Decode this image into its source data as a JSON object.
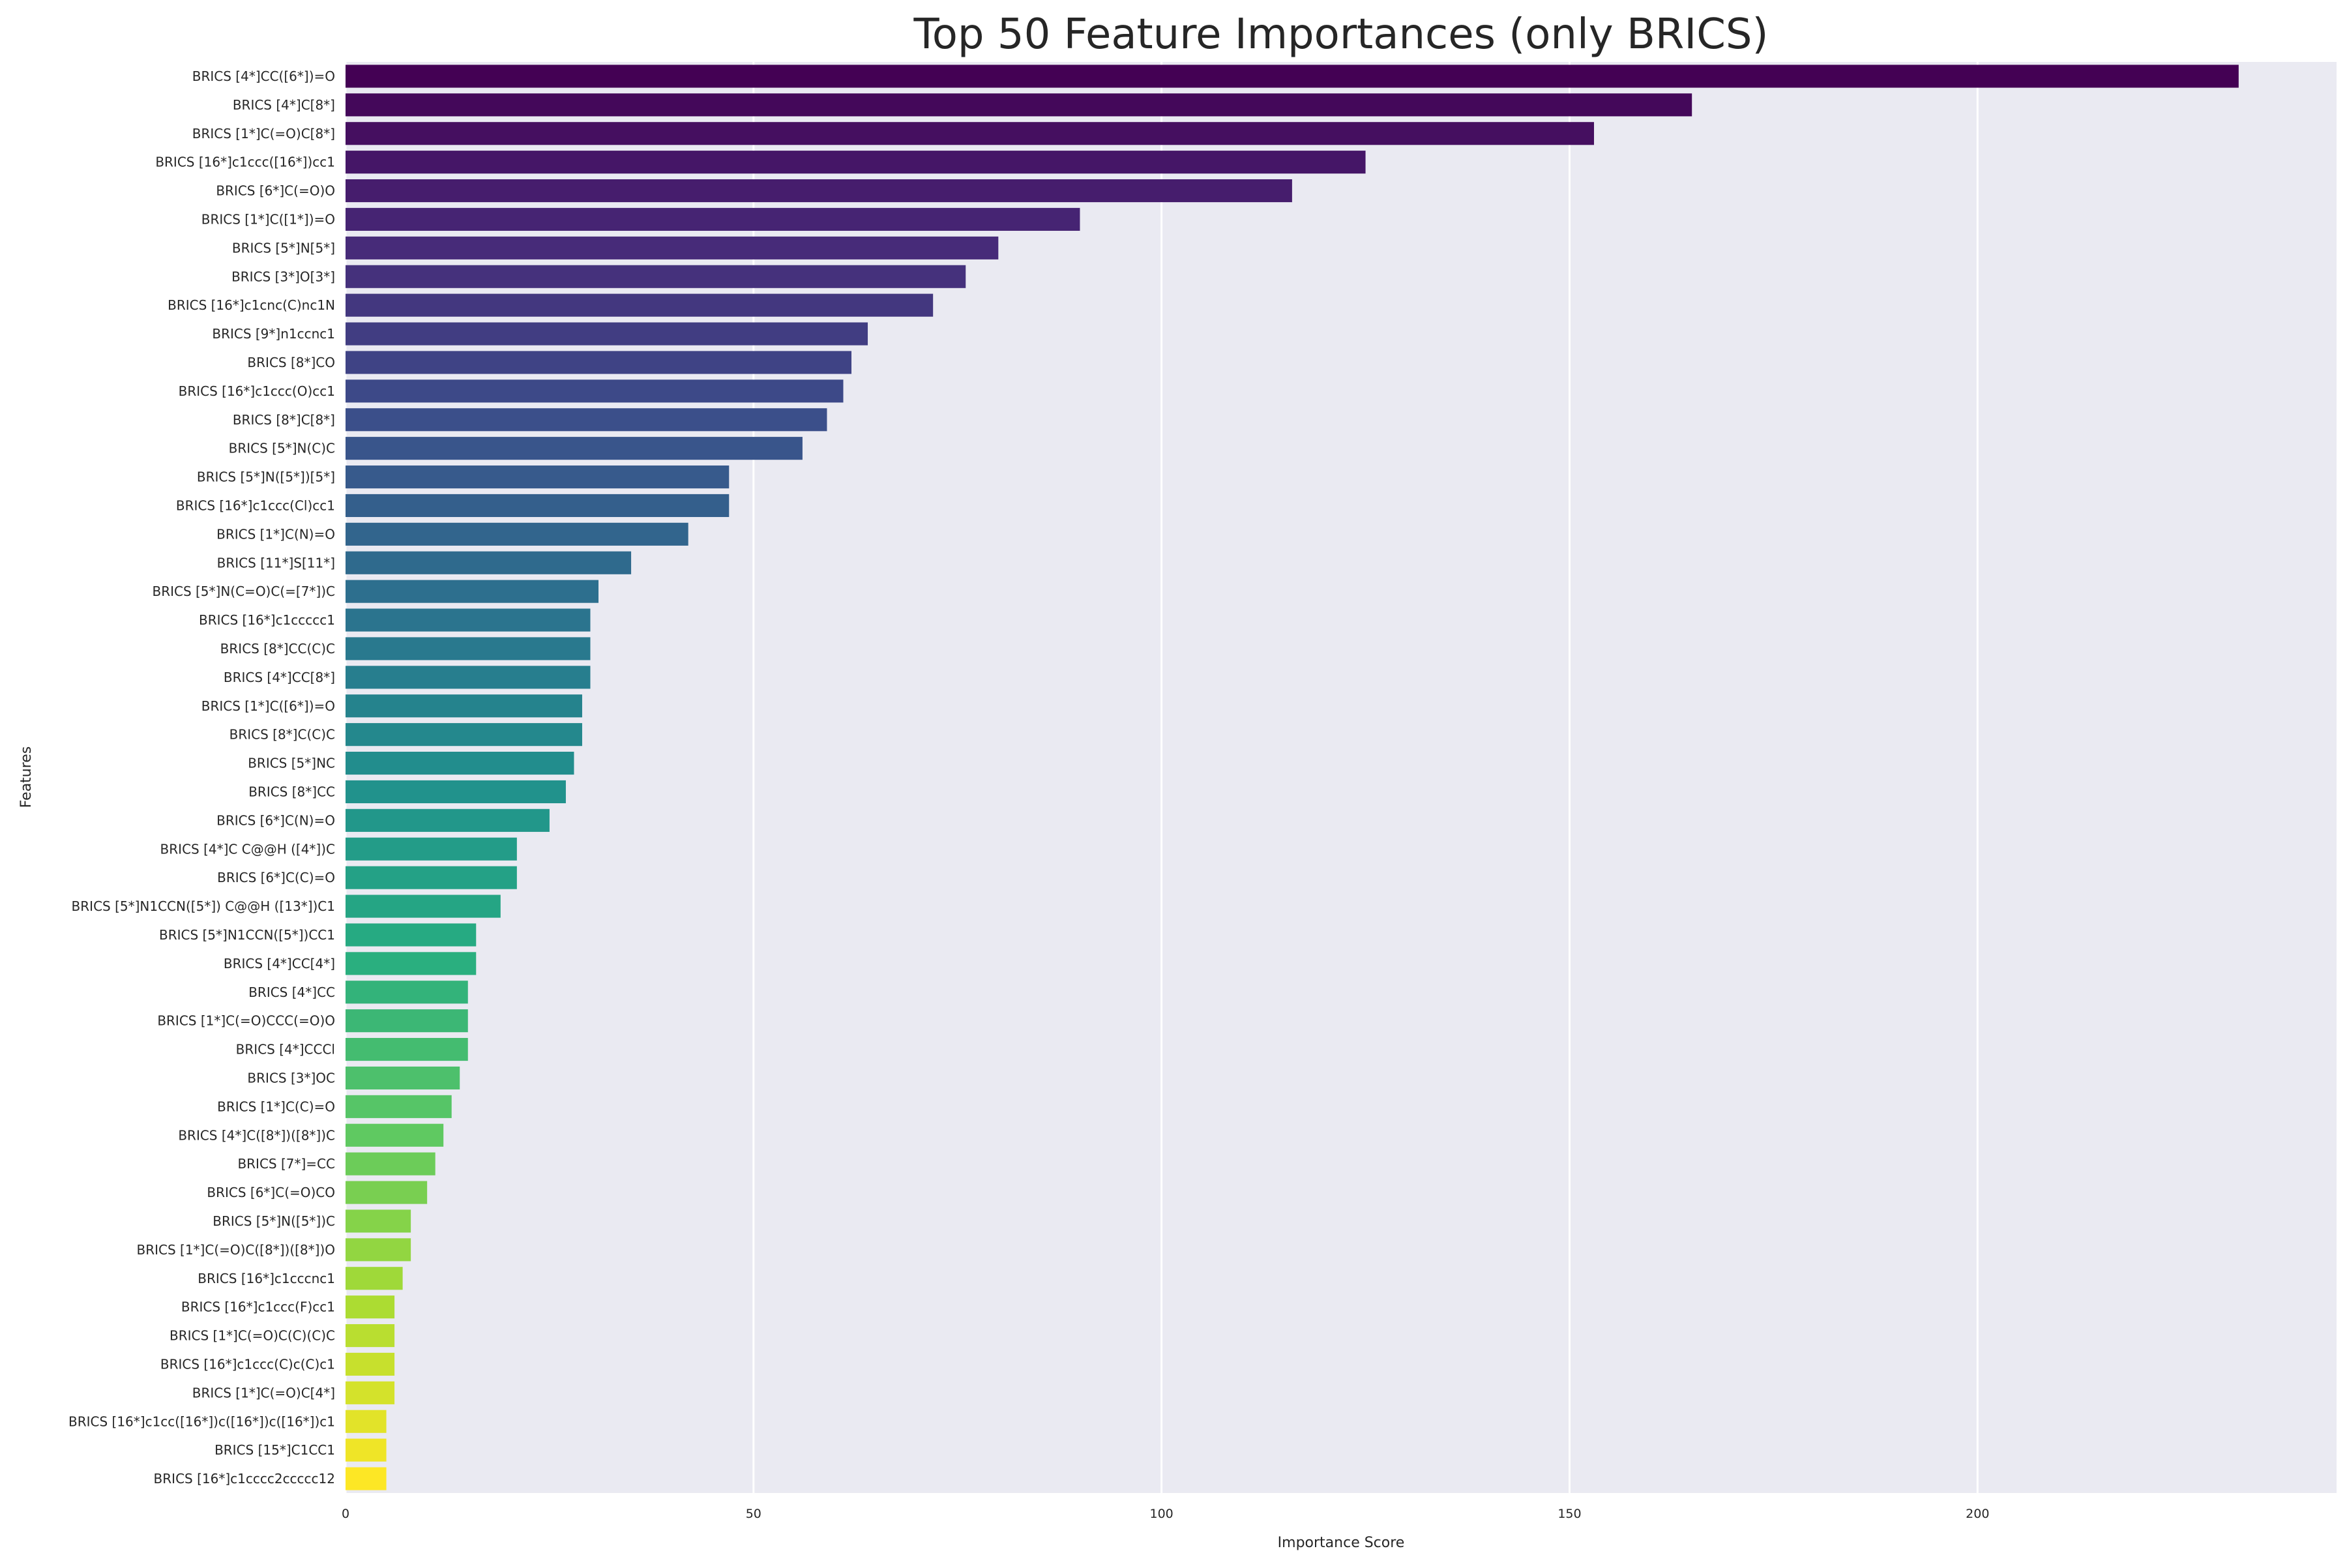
{
  "chart_data": {
    "type": "bar",
    "orientation": "horizontal",
    "title": "Top 50 Feature Importances (only BRICS)",
    "xlabel": "Importance Score",
    "ylabel": "Features",
    "xlim": [
      0,
      244
    ],
    "xticks": [
      0,
      50,
      100,
      150,
      200
    ],
    "grid": true,
    "legend": "none",
    "colormap": "viridis",
    "colors": {
      "background": "#ffffff",
      "plot_background": "#eaeaf2",
      "grid": "#ffffff",
      "text": "#262626"
    },
    "categories": [
      "BRICS [4*]CC([6*])=O",
      "BRICS [4*]C[8*]",
      "BRICS [1*]C(=O)C[8*]",
      "BRICS [16*]c1ccc([16*])cc1",
      "BRICS [6*]C(=O)O",
      "BRICS [1*]C([1*])=O",
      "BRICS [5*]N[5*]",
      "BRICS [3*]O[3*]",
      "BRICS [16*]c1cnc(C)nc1N",
      "BRICS [9*]n1ccnc1",
      "BRICS [8*]CO",
      "BRICS [16*]c1ccc(O)cc1",
      "BRICS [8*]C[8*]",
      "BRICS [5*]N(C)C",
      "BRICS [5*]N([5*])[5*]",
      "BRICS [16*]c1ccc(Cl)cc1",
      "BRICS [1*]C(N)=O",
      "BRICS [11*]S[11*]",
      "BRICS [5*]N(C=O)C(=[7*])C",
      "BRICS [16*]c1ccccc1",
      "BRICS [8*]CC(C)C",
      "BRICS [4*]CC[8*]",
      "BRICS [1*]C([6*])=O",
      "BRICS [8*]C(C)C",
      "BRICS [5*]NC",
      "BRICS [8*]CC",
      "BRICS [6*]C(N)=O",
      "BRICS [4*]C C@@H ([4*])C",
      "BRICS [6*]C(C)=O",
      "BRICS [5*]N1CCN([5*]) C@@H ([13*])C1",
      "BRICS [5*]N1CCN([5*])CC1",
      "BRICS [4*]CC[4*]",
      "BRICS [4*]CC",
      "BRICS [1*]C(=O)CCC(=O)O",
      "BRICS [4*]CCCl",
      "BRICS [3*]OC",
      "BRICS [1*]C(C)=O",
      "BRICS [4*]C([8*])([8*])C",
      "BRICS [7*]=CC",
      "BRICS [6*]C(=O)CO",
      "BRICS [5*]N([5*])C",
      "BRICS [1*]C(=O)C([8*])([8*])O",
      "BRICS [16*]c1cccnc1",
      "BRICS [16*]c1ccc(F)cc1",
      "BRICS [1*]C(=O)C(C)(C)C",
      "BRICS [16*]c1ccc(C)c(C)c1",
      "BRICS [1*]C(=O)C[4*]",
      "BRICS [16*]c1cc([16*])c([16*])c([16*])c1",
      "BRICS [15*]C1CC1",
      "BRICS [16*]c1cccc2ccccc12"
    ],
    "values": [
      232,
      165,
      153,
      125,
      116,
      90,
      80,
      76,
      72,
      64,
      62,
      61,
      59,
      56,
      47,
      47,
      42,
      35,
      31,
      30,
      30,
      30,
      29,
      29,
      28,
      27,
      25,
      21,
      21,
      19,
      16,
      16,
      15,
      15,
      15,
      14,
      13,
      12,
      11,
      10,
      8,
      8,
      7,
      6,
      6,
      6,
      6,
      5,
      5,
      5
    ]
  }
}
